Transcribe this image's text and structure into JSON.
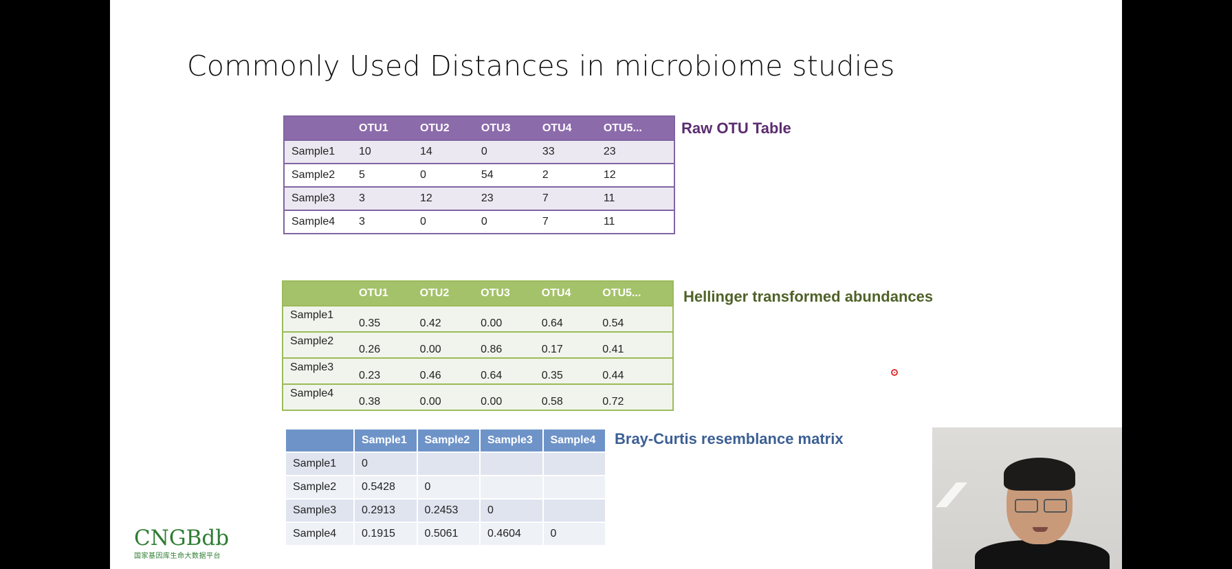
{
  "slide": {
    "title": "Commonly Used Distances in microbiome studies"
  },
  "raw_table": {
    "caption": "Raw OTU Table",
    "headers": [
      "",
      "OTU1",
      "OTU2",
      "OTU3",
      "OTU4",
      "OTU5..."
    ],
    "rows": [
      [
        "Sample1",
        "10",
        "14",
        "0",
        "33",
        "23"
      ],
      [
        "Sample2",
        "5",
        "0",
        "54",
        "2",
        "12"
      ],
      [
        "Sample3",
        "3",
        "12",
        "23",
        "7",
        "11"
      ],
      [
        "Sample4",
        "3",
        "0",
        "0",
        "7",
        "11"
      ]
    ]
  },
  "hellinger_table": {
    "caption": "Hellinger transformed abundances",
    "headers": [
      "",
      "OTU1",
      "OTU2",
      "OTU3",
      "OTU4",
      "OTU5..."
    ],
    "rows": [
      [
        "Sample1",
        "0.35",
        "0.42",
        "0.00",
        "0.64",
        "0.54"
      ],
      [
        "Sample2",
        "0.26",
        "0.00",
        "0.86",
        "0.17",
        "0.41"
      ],
      [
        "Sample3",
        "0.23",
        "0.46",
        "0.64",
        "0.35",
        "0.44"
      ],
      [
        "Sample4",
        "0.38",
        "0.00",
        "0.00",
        "0.58",
        "0.72"
      ]
    ]
  },
  "bray_curtis_table": {
    "caption": "Bray-Curtis resemblance matrix",
    "headers": [
      "",
      "Sample1",
      "Sample2",
      "Sample3",
      "Sample4"
    ],
    "rows": [
      [
        "Sample1",
        "0",
        "",
        "",
        ""
      ],
      [
        "Sample2",
        "0.5428",
        "0",
        "",
        ""
      ],
      [
        "Sample3",
        "0.2913",
        "0.2453",
        "0",
        ""
      ],
      [
        "Sample4",
        "0.1915",
        "0.5061",
        "0.4604",
        "0"
      ]
    ]
  },
  "logo": {
    "main": "CNGBdb",
    "sub": "国家基因库生命大数据平台"
  },
  "colors": {
    "raw_accent": "#8c6bab",
    "hellinger_accent": "#a4c26a",
    "bray_curtis_accent": "#6e93c8"
  }
}
